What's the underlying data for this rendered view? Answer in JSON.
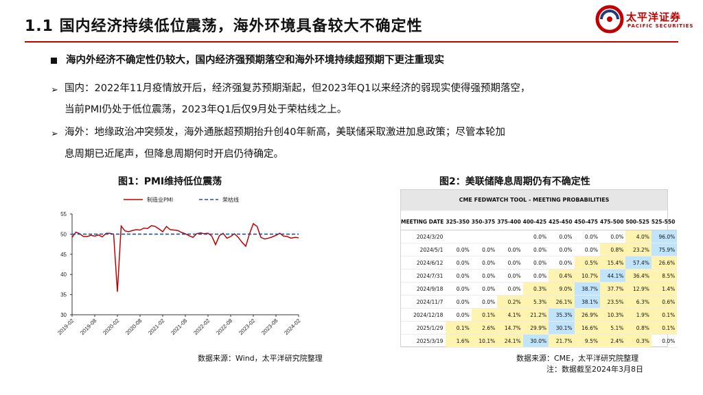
{
  "header": {
    "title": "1.1 国内经济持续低位震荡，海外环境具备较大不确定性",
    "logo_cn": "太平洋证券",
    "logo_en": "PACIFIC SECURITIES"
  },
  "bullets": {
    "main": "海内外经济不确定性仍较大，国内经济强预期落空和海外环境持续超预期下更注重现实",
    "domestic_line1": "国内：2022年11月疫情放开后，经济强复苏预期渐起，但2023年Q1以来经济的弱现实使得强预期落空，",
    "domestic_line2": "当前PMI仍处于低位震荡，2023年Q1后仅9月处于荣枯线之上。",
    "overseas_line1": "海外：地缘政治冲突频发，海外通胀超预期抬升创40年新高，美联储采取激进加息政策；尽管本轮加",
    "overseas_line2": "息周期已近尾声，但降息周期何时开启仍待确定。"
  },
  "figure1": {
    "title": "图1：PMI维持低位震荡",
    "source": "数据来源：Wind，太平洋研究院整理"
  },
  "figure2": {
    "title": "图2：美联储降息周期仍有不确定性",
    "source": "数据来源：CME，太平洋研究院整理",
    "note": "注：数据截至2024年3月8日"
  },
  "chart_data": {
    "type": "line",
    "x": [
      "2019-02",
      "2019-03",
      "2019-04",
      "2019-05",
      "2019-06",
      "2019-07",
      "2019-08",
      "2019-09",
      "2019-10",
      "2019-11",
      "2019-12",
      "2020-01",
      "2020-02",
      "2020-03",
      "2020-04",
      "2020-05",
      "2020-06",
      "2020-07",
      "2020-08",
      "2020-09",
      "2020-10",
      "2020-11",
      "2020-12",
      "2021-01",
      "2021-02",
      "2021-03",
      "2021-04",
      "2021-05",
      "2021-06",
      "2021-07",
      "2021-08",
      "2021-09",
      "2021-10",
      "2021-11",
      "2021-12",
      "2022-01",
      "2022-02",
      "2022-03",
      "2022-04",
      "2022-05",
      "2022-06",
      "2022-07",
      "2022-08",
      "2022-09",
      "2022-10",
      "2022-11",
      "2022-12",
      "2023-01",
      "2023-02",
      "2023-03",
      "2023-04",
      "2023-05",
      "2023-06",
      "2023-07",
      "2023-08",
      "2023-09",
      "2023-10",
      "2023-11",
      "2023-12",
      "2024-01",
      "2024-02"
    ],
    "series": [
      {
        "name": "制造业PMI",
        "color": "#c00000",
        "values": [
          49.2,
          50.5,
          50.1,
          49.4,
          49.4,
          49.7,
          49.5,
          49.8,
          49.3,
          50.2,
          50.2,
          50.0,
          35.7,
          52.0,
          50.8,
          50.6,
          50.9,
          51.1,
          51.0,
          51.5,
          51.4,
          52.1,
          51.9,
          51.3,
          50.6,
          51.9,
          51.1,
          51.0,
          50.9,
          50.4,
          50.1,
          49.6,
          49.2,
          50.1,
          50.3,
          50.1,
          50.2,
          49.5,
          47.4,
          49.6,
          50.2,
          49.0,
          49.4,
          50.1,
          49.2,
          48.0,
          47.0,
          50.1,
          52.6,
          51.9,
          49.2,
          48.8,
          49.0,
          49.3,
          49.7,
          50.2,
          49.5,
          49.4,
          49.0,
          49.2,
          49.1
        ]
      },
      {
        "name": "荣枯线",
        "color": "#1f4e9c",
        "dashed": true,
        "constant": 50
      }
    ],
    "x_ticks": [
      "2019-02",
      "2019-08",
      "2020-02",
      "2020-08",
      "2021-02",
      "2021-08",
      "2022-02",
      "2022-08",
      "2023-02",
      "2023-08",
      "2024-02"
    ],
    "y_ticks": [
      30,
      35,
      40,
      45,
      50,
      55
    ],
    "ylim": [
      30,
      55
    ],
    "legend": "top"
  },
  "fedwatch": {
    "title": "CME FEDWATCH TOOL - MEETING PROBABILITIES",
    "columns": [
      "MEETING DATE",
      "325-350",
      "350-375",
      "375-400",
      "400-425",
      "425-450",
      "450-475",
      "475-500",
      "500-525",
      "525-550"
    ],
    "rows": [
      {
        "date": "2024/3/20",
        "cells": [
          "",
          "",
          "",
          "0.0%",
          "0.0%",
          "0.0%",
          "0.0%",
          "4.0%",
          "96.0%"
        ]
      },
      {
        "date": "2024/5/1",
        "cells": [
          "0.0%",
          "0.0%",
          "0.0%",
          "0.0%",
          "0.0%",
          "0.0%",
          "0.8%",
          "23.2%",
          "75.9%"
        ]
      },
      {
        "date": "2024/6/12",
        "cells": [
          "0.0%",
          "0.0%",
          "0.0%",
          "0.0%",
          "0.0%",
          "0.5%",
          "15.4%",
          "57.4%",
          "26.6%"
        ]
      },
      {
        "date": "2024/7/31",
        "cells": [
          "0.0%",
          "0.0%",
          "0.0%",
          "0.0%",
          "0.4%",
          "10.7%",
          "44.1%",
          "36.4%",
          "8.5%"
        ]
      },
      {
        "date": "2024/9/18",
        "cells": [
          "0.0%",
          "0.0%",
          "0.0%",
          "0.3%",
          "9.0%",
          "38.7%",
          "37.7%",
          "12.9%",
          "1.4%"
        ]
      },
      {
        "date": "2024/11/7",
        "cells": [
          "0.0%",
          "0.0%",
          "0.2%",
          "5.3%",
          "26.1%",
          "38.1%",
          "23.5%",
          "6.3%",
          "0.6%"
        ]
      },
      {
        "date": "2024/12/18",
        "cells": [
          "0.0%",
          "0.1%",
          "4.1%",
          "21.2%",
          "35.3%",
          "26.9%",
          "10.3%",
          "1.9%",
          "0.1%"
        ]
      },
      {
        "date": "2025/1/29",
        "cells": [
          "0.1%",
          "2.6%",
          "14.7%",
          "29.9%",
          "30.1%",
          "16.6%",
          "5.1%",
          "0.8%",
          "0.1%"
        ]
      },
      {
        "date": "2025/3/19",
        "cells": [
          "1.6%",
          "10.1%",
          "24.1%",
          "30.0%",
          "21.7%",
          "9.5%",
          "2.4%",
          "0.3%",
          "0.0%"
        ]
      }
    ]
  }
}
